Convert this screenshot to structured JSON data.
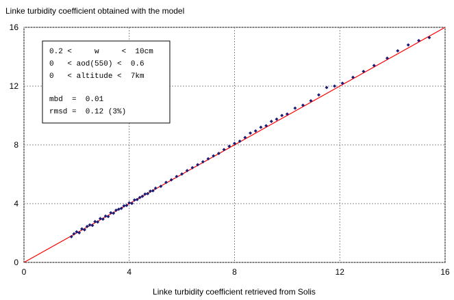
{
  "chart_data": {
    "type": "scatter",
    "title": "Linke turbidity coefficient obtained with the model",
    "x_label": "Linke turbidity coefficient retrieved from Solis",
    "annotations": [
      "0.2 <     w     <  10cm",
      "0   < aod(550) <  0.6",
      "0   < altitude <  7km",
      "mbd  =  0.01",
      "rmsd =  0.12 (3%)"
    ],
    "xlim": [
      0,
      16
    ],
    "ylim": [
      0,
      16
    ],
    "xticks": [
      0,
      4,
      8,
      12,
      16
    ],
    "yticks": [
      0,
      4,
      8,
      12,
      16
    ],
    "grid": true,
    "color": "#1c1c74",
    "line_color": "#ff0000",
    "x": [
      1.8,
      1.9,
      2.0,
      2.1,
      2.2,
      2.3,
      2.4,
      2.5,
      2.6,
      2.7,
      2.8,
      2.9,
      3.0,
      3.1,
      3.2,
      3.3,
      3.4,
      3.5,
      3.6,
      3.7,
      3.8,
      3.9,
      4.0,
      4.1,
      4.2,
      4.3,
      4.4,
      4.5,
      4.6,
      4.7,
      4.8,
      4.9,
      5.0,
      5.2,
      5.4,
      5.6,
      5.8,
      6.0,
      6.2,
      6.4,
      6.6,
      6.8,
      7.0,
      7.2,
      7.4,
      7.6,
      7.8,
      8.0,
      8.2,
      8.4,
      8.6,
      8.8,
      9.0,
      9.2,
      9.4,
      9.6,
      9.8,
      10.0,
      10.3,
      10.6,
      10.9,
      11.2,
      11.5,
      11.8,
      12.1,
      12.5,
      12.9,
      13.3,
      13.8,
      14.2,
      14.6,
      15.0,
      15.4
    ],
    "y": [
      1.75,
      1.95,
      2.08,
      2.02,
      2.28,
      2.22,
      2.45,
      2.55,
      2.52,
      2.78,
      2.75,
      2.98,
      2.95,
      3.15,
      3.12,
      3.38,
      3.35,
      3.55,
      3.62,
      3.68,
      3.85,
      3.88,
      4.05,
      4.02,
      4.25,
      4.28,
      4.42,
      4.5,
      4.65,
      4.68,
      4.85,
      4.88,
      5.05,
      5.18,
      5.45,
      5.62,
      5.85,
      6.02,
      6.25,
      6.45,
      6.65,
      6.85,
      7.05,
      7.25,
      7.42,
      7.68,
      7.9,
      8.1,
      8.25,
      8.5,
      8.8,
      8.95,
      9.2,
      9.3,
      9.6,
      9.75,
      10.0,
      10.1,
      10.5,
      10.7,
      11.0,
      11.4,
      11.9,
      12.0,
      12.2,
      12.6,
      13.0,
      13.4,
      13.9,
      14.4,
      14.8,
      15.1,
      15.3
    ]
  }
}
